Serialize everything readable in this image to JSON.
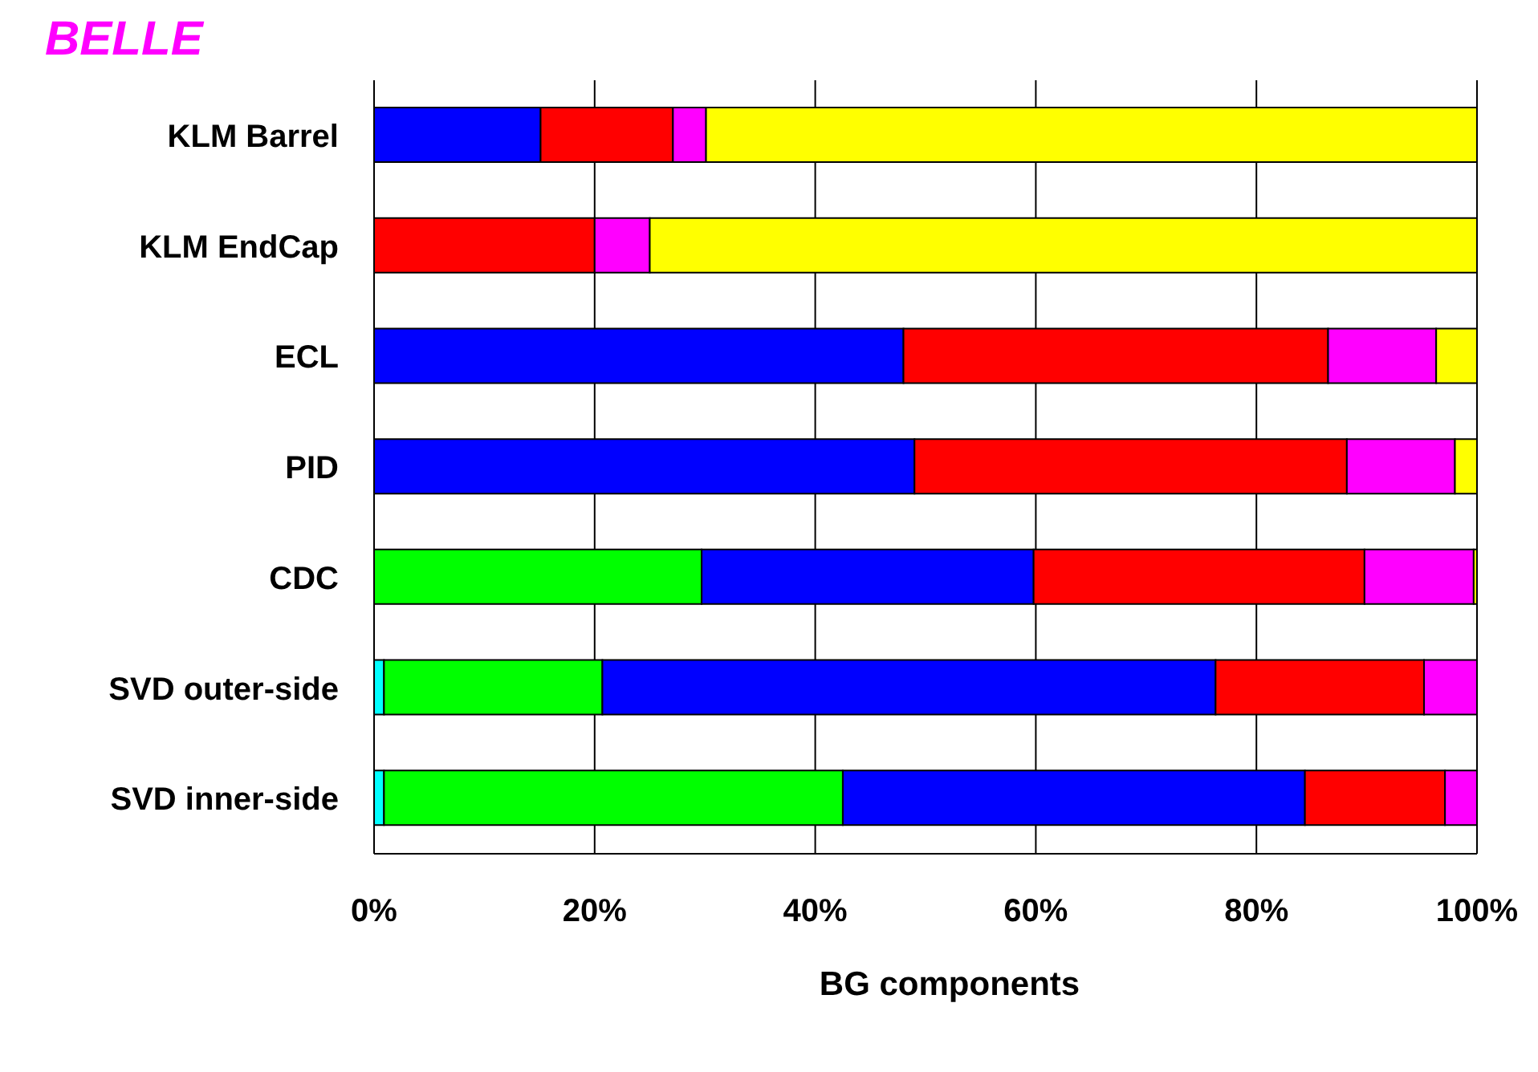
{
  "chart_data": {
    "type": "bar",
    "orientation": "horizontal",
    "stacked": true,
    "title": "BELLE",
    "xlabel": "BG components",
    "categories": [
      "KLM Barrel",
      "KLM EndCap",
      "ECL",
      "PID",
      "CDC",
      "SVD outer-side",
      "SVD inner-side"
    ],
    "series": [
      {
        "color": "#00ffff",
        "values": [
          null,
          null,
          null,
          null,
          null,
          0.9,
          0.9
        ]
      },
      {
        "color": "#00ff00",
        "values": [
          null,
          null,
          null,
          null,
          29.7,
          19.8,
          41.6
        ]
      },
      {
        "color": "#0000ff",
        "values": [
          15.1,
          null,
          48,
          49,
          30.1,
          55.6,
          41.9
        ]
      },
      {
        "color": "#ff0000",
        "values": [
          12,
          20,
          38.5,
          39.2,
          30,
          18.9,
          12.7
        ]
      },
      {
        "color": "#ff00ff",
        "values": [
          3,
          5,
          9.8,
          9.8,
          9.9,
          4.8,
          2.9
        ]
      },
      {
        "color": "#ffff00",
        "values": [
          70,
          75,
          3.7,
          2,
          0.3,
          null,
          null
        ]
      }
    ],
    "xlim": [
      0,
      100
    ],
    "xticks": [
      {
        "value": 0,
        "label": "0%"
      },
      {
        "value": 20,
        "label": "20%"
      },
      {
        "value": 40,
        "label": "40%"
      },
      {
        "value": 60,
        "label": "60%"
      },
      {
        "value": 80,
        "label": "80%"
      },
      {
        "value": 100,
        "label": "100%"
      }
    ],
    "grid": "x"
  }
}
